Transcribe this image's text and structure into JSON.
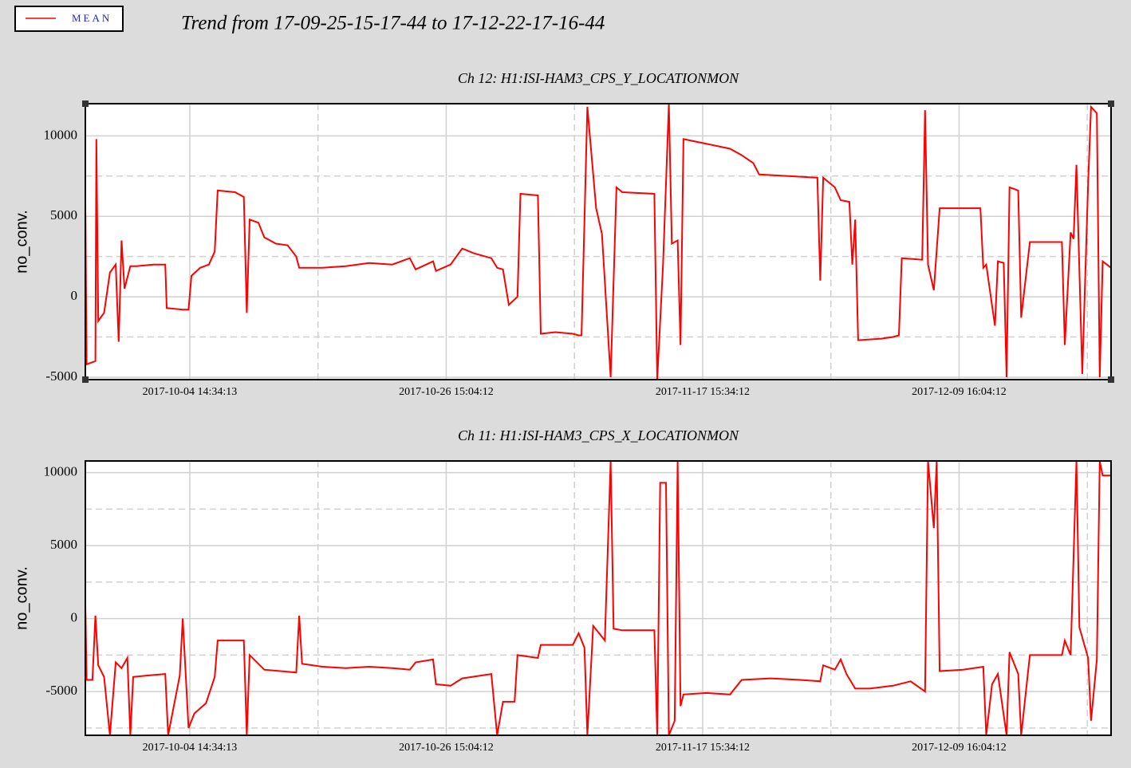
{
  "title": "Trend from 17-09-25-15-17-44 to 17-12-22-17-16-44",
  "chart_data": [
    {
      "type": "line",
      "title": "Ch 12: H1:ISI-HAM3_CPS_Y_LOCATIONMON",
      "y_label": "no_conv.",
      "x": [
        "2017-09-25 15:17:44",
        "2017-09-25 18:00:00",
        "2017-09-26 12:00:00",
        "2017-09-26 14:00:00",
        "2017-09-26 18:00:00",
        "2017-09-27 06:00:00",
        "2017-09-27 18:00:00",
        "2017-09-28 06:00:00",
        "2017-09-28 12:00:00",
        "2017-09-28 18:00:00",
        "2017-09-29 00:00:00",
        "2017-09-29 12:00:00",
        "2017-09-30 00:00:00",
        "2017-10-01 12:00:00",
        "2017-10-02 12:00:00",
        "2017-10-02 15:00:00",
        "2017-10-04 00:00:00",
        "2017-10-04 12:00:00",
        "2017-10-04 18:00:00",
        "2017-10-05 12:00:00",
        "2017-10-06 06:00:00",
        "2017-10-06 18:00:00",
        "2017-10-07 00:00:00",
        "2017-10-08 12:00:00",
        "2017-10-09 06:00:00",
        "2017-10-09 12:00:00",
        "2017-10-09 18:00:00",
        "2017-10-10 12:00:00",
        "2017-10-11 00:00:00",
        "2017-10-12 00:00:00",
        "2017-10-13 00:00:00",
        "2017-10-13 18:00:00",
        "2017-10-14 00:00:00",
        "2017-10-16 00:00:00",
        "2017-10-18 00:00:00",
        "2017-10-20 00:00:00",
        "2017-10-22 00:00:00",
        "2017-10-23 12:00:00",
        "2017-10-24 00:00:00",
        "2017-10-25 12:00:00",
        "2017-10-25 18:00:00",
        "2017-10-27 00:00:00",
        "2017-10-28 00:00:00",
        "2017-10-29 00:00:00",
        "2017-10-30 12:00:00",
        "2017-10-31 00:00:00",
        "2017-10-31 12:00:00",
        "2017-11-01 00:00:00",
        "2017-11-01 18:00:00",
        "2017-11-02 00:00:00",
        "2017-11-03 12:00:00",
        "2017-11-03 18:00:00",
        "2017-11-05 00:00:00",
        "2017-11-06 12:00:00",
        "2017-11-07 00:00:00",
        "2017-11-07 06:00:00",
        "2017-11-07 18:00:00",
        "2017-11-08 12:00:00",
        "2017-11-09 00:00:00",
        "2017-11-09 18:00:00",
        "2017-11-10 06:00:00",
        "2017-11-10 18:00:00",
        "2017-11-13 12:00:00",
        "2017-11-13 18:00:00",
        "2017-11-14 06:00:00",
        "2017-11-14 18:00:00",
        "2017-11-15 00:00:00",
        "2017-11-15 12:00:00",
        "2017-11-15 18:00:00",
        "2017-11-16 00:00:00",
        "2017-11-18 00:00:00",
        "2017-11-20 00:00:00",
        "2017-11-21 00:00:00",
        "2017-11-22 00:00:00",
        "2017-11-22 12:00:00",
        "2017-11-25 00:00:00",
        "2017-11-27 12:00:00",
        "2017-11-27 18:00:00",
        "2017-11-28 00:00:00",
        "2017-11-29 00:00:00",
        "2017-11-29 12:00:00",
        "2017-11-30 06:00:00",
        "2017-11-30 12:00:00",
        "2017-11-30 18:00:00",
        "2017-12-01 00:00:00",
        "2017-12-03 00:00:00",
        "2017-12-04 00:00:00",
        "2017-12-04 12:00:00",
        "2017-12-04 18:00:00",
        "2017-12-06 12:00:00",
        "2017-12-06 18:00:00",
        "2017-12-07 00:00:00",
        "2017-12-07 12:00:00",
        "2017-12-08 00:00:00",
        "2017-12-10 00:00:00",
        "2017-12-11 12:00:00",
        "2017-12-11 18:00:00",
        "2017-12-12 00:00:00",
        "2017-12-12 18:00:00",
        "2017-12-13 00:00:00",
        "2017-12-13 12:00:00",
        "2017-12-13 18:00:00",
        "2017-12-14 00:00:00",
        "2017-12-14 18:00:00",
        "2017-12-15 00:00:00",
        "2017-12-15 18:00:00",
        "2017-12-18 00:00:00",
        "2017-12-18 12:00:00",
        "2017-12-18 18:00:00",
        "2017-12-19 06:00:00",
        "2017-12-19 12:00:00",
        "2017-12-19 18:00:00",
        "2017-12-20 06:00:00",
        "2017-12-20 18:00:00",
        "2017-12-21 00:00:00",
        "2017-12-21 12:00:00",
        "2017-12-21 18:00:00",
        "2017-12-22 00:00:00",
        "2017-12-22 17:16:44"
      ],
      "series": [
        {
          "name": "MEAN",
          "color": "#ff0000",
          "values": [
            6000,
            -4200,
            -4000,
            9800,
            -1500,
            -1000,
            1500,
            2000,
            -2800,
            3500,
            500,
            1900,
            1900,
            2000,
            2000,
            -700,
            -800,
            -800,
            1300,
            1800,
            2000,
            2800,
            6600,
            6500,
            6200,
            -1000,
            4800,
            4600,
            3700,
            3300,
            3200,
            2500,
            1800,
            1800,
            1900,
            2100,
            2000,
            2400,
            1700,
            2200,
            1600,
            2000,
            3000,
            2700,
            2400,
            1800,
            1700,
            -500,
            0,
            6400,
            6300,
            -2300,
            -2200,
            -2300,
            -2400,
            -2400,
            11800,
            5500,
            3900,
            -5000,
            6800,
            6500,
            6400,
            -5150,
            2000,
            12000,
            3300,
            3500,
            -3000,
            9800,
            9500,
            9200,
            8800,
            8300,
            7600,
            7500,
            7400,
            1000,
            7400,
            6800,
            6000,
            5900,
            2000,
            4800,
            -2700,
            -2600,
            -2500,
            -2400,
            2400,
            2300,
            11600,
            2000,
            400,
            5500,
            5500,
            5500,
            1800,
            2000,
            -1800,
            2200,
            2100,
            -5000,
            6800,
            6600,
            -1300,
            3400,
            3400,
            3400,
            -3000,
            4000,
            3600,
            8200,
            -4800,
            7000,
            11800,
            11400,
            -5000,
            2200,
            1800
          ]
        }
      ],
      "xlim": [
        "2017-09-25 15:17:44",
        "2017-12-22 17:16:44"
      ],
      "xticks": [
        "2017-10-04 14:34:13",
        "2017-10-26 15:04:12",
        "2017-11-17 15:34:12",
        "2017-12-09 16:04:12"
      ],
      "ylim": [
        -5150,
        12000
      ],
      "yticks": [
        -5000,
        0,
        5000,
        10000
      ],
      "grid": true
    },
    {
      "type": "line",
      "title": "Ch 11: H1:ISI-HAM3_CPS_X_LOCATIONMON",
      "y_label": "no_conv.",
      "x": [
        "2017-09-25 15:17:44",
        "2017-09-25 18:00:00",
        "2017-09-26 06:00:00",
        "2017-09-26 12:00:00",
        "2017-09-26 18:00:00",
        "2017-09-27 06:00:00",
        "2017-09-27 18:00:00",
        "2017-09-28 06:00:00",
        "2017-09-28 18:00:00",
        "2017-09-29 06:00:00",
        "2017-09-29 12:00:00",
        "2017-09-29 18:00:00",
        "2017-10-01 00:00:00",
        "2017-10-02 12:00:00",
        "2017-10-02 18:00:00",
        "2017-10-03 18:00:00",
        "2017-10-04 00:00:00",
        "2017-10-04 12:00:00",
        "2017-10-05 00:00:00",
        "2017-10-06 00:00:00",
        "2017-10-06 18:00:00",
        "2017-10-07 00:00:00",
        "2017-10-09 06:00:00",
        "2017-10-09 12:00:00",
        "2017-10-09 18:00:00",
        "2017-10-11 00:00:00",
        "2017-10-13 18:00:00",
        "2017-10-14 00:00:00",
        "2017-10-14 06:00:00",
        "2017-10-16 00:00:00",
        "2017-10-18 00:00:00",
        "2017-10-20 00:00:00",
        "2017-10-22 00:00:00",
        "2017-10-23 12:00:00",
        "2017-10-24 00:00:00",
        "2017-10-25 12:00:00",
        "2017-10-25 18:00:00",
        "2017-10-27 00:00:00",
        "2017-10-28 00:00:00",
        "2017-10-30 12:00:00",
        "2017-10-31 00:00:00",
        "2017-10-31 12:00:00",
        "2017-11-01 12:00:00",
        "2017-11-01 18:00:00",
        "2017-11-03 12:00:00",
        "2017-11-03 18:00:00",
        "2017-11-06 12:00:00",
        "2017-11-07 00:00:00",
        "2017-11-07 12:00:00",
        "2017-11-07 18:00:00",
        "2017-11-08 06:00:00",
        "2017-11-08 18:00:00",
        "2017-11-09 06:00:00",
        "2017-11-09 18:00:00",
        "2017-11-10 00:00:00",
        "2017-11-10 18:00:00",
        "2017-11-13 12:00:00",
        "2017-11-13 18:00:00",
        "2017-11-14 00:00:00",
        "2017-11-14 12:00:00",
        "2017-11-14 18:00:00",
        "2017-11-15 06:00:00",
        "2017-11-15 12:00:00",
        "2017-11-15 18:00:00",
        "2017-11-16 00:00:00",
        "2017-11-18 00:00:00",
        "2017-11-20 00:00:00",
        "2017-11-21 00:00:00",
        "2017-11-23 12:00:00",
        "2017-11-26 00:00:00",
        "2017-11-27 18:00:00",
        "2017-11-28 00:00:00",
        "2017-11-29 00:00:00",
        "2017-11-29 12:00:00",
        "2017-11-30 00:00:00",
        "2017-11-30 18:00:00",
        "2017-12-02 00:00:00",
        "2017-12-04 00:00:00",
        "2017-12-05 12:00:00",
        "2017-12-06 18:00:00",
        "2017-12-07 00:00:00",
        "2017-12-07 12:00:00",
        "2017-12-07 18:00:00",
        "2017-12-08 00:00:00",
        "2017-12-10 00:00:00",
        "2017-12-11 18:00:00",
        "2017-12-12 00:00:00",
        "2017-12-12 12:00:00",
        "2017-12-13 00:00:00",
        "2017-12-13 18:00:00",
        "2017-12-14 00:00:00",
        "2017-12-14 18:00:00",
        "2017-12-15 00:00:00",
        "2017-12-15 18:00:00",
        "2017-12-18 12:00:00",
        "2017-12-18 18:00:00",
        "2017-12-19 06:00:00",
        "2017-12-19 18:00:00",
        "2017-12-20 00:00:00",
        "2017-12-20 18:00:00",
        "2017-12-21 00:00:00",
        "2017-12-21 12:00:00",
        "2017-12-21 18:00:00",
        "2017-12-22 00:00:00",
        "2017-12-22 17:16:44"
      ],
      "series": [
        {
          "name": "MEAN",
          "color": "#ff0000",
          "values": [
            1000,
            -4200,
            -4200,
            200,
            -3200,
            -4000,
            -8000,
            -3000,
            -3400,
            -2700,
            -8000,
            -4000,
            -3900,
            -3800,
            -8000,
            -3900,
            0,
            -7500,
            -6500,
            -5800,
            -4000,
            -1500,
            -1500,
            -8000,
            -2500,
            -3500,
            -3700,
            200,
            -3100,
            -3300,
            -3400,
            -3300,
            -3400,
            -3500,
            -3000,
            -2800,
            -4500,
            -4600,
            -4100,
            -3800,
            -8000,
            -5700,
            -5700,
            -2500,
            -2700,
            -1800,
            -1800,
            -1000,
            -2000,
            -8000,
            -500,
            -1000,
            -1500,
            10800,
            -700,
            -800,
            -800,
            -8000,
            9300,
            9300,
            -8000,
            -7000,
            10800,
            -6000,
            -5200,
            -5100,
            -5200,
            -4200,
            -4100,
            -4200,
            -4300,
            -3200,
            -3500,
            -2800,
            -3800,
            -4800,
            -4800,
            -4600,
            -4300,
            -5000,
            10800,
            6200,
            10800,
            -3600,
            -3500,
            -3300,
            -8000,
            -4500,
            -3800,
            -8000,
            -2300,
            -3800,
            -8000,
            -2500,
            -2500,
            -1500,
            -2500,
            10800,
            -600,
            -2700,
            -7000,
            -2800,
            10800,
            9800,
            9800
          ]
        }
      ],
      "xlim": [
        "2017-09-25 15:17:44",
        "2017-12-22 17:16:44"
      ],
      "xticks": [
        "2017-10-04 14:34:13",
        "2017-10-26 15:04:12",
        "2017-11-17 15:34:12",
        "2017-12-09 16:04:12"
      ],
      "ylim": [
        -8000,
        10800
      ],
      "yticks": [
        -5000,
        0,
        5000,
        10000
      ],
      "grid": true
    }
  ]
}
